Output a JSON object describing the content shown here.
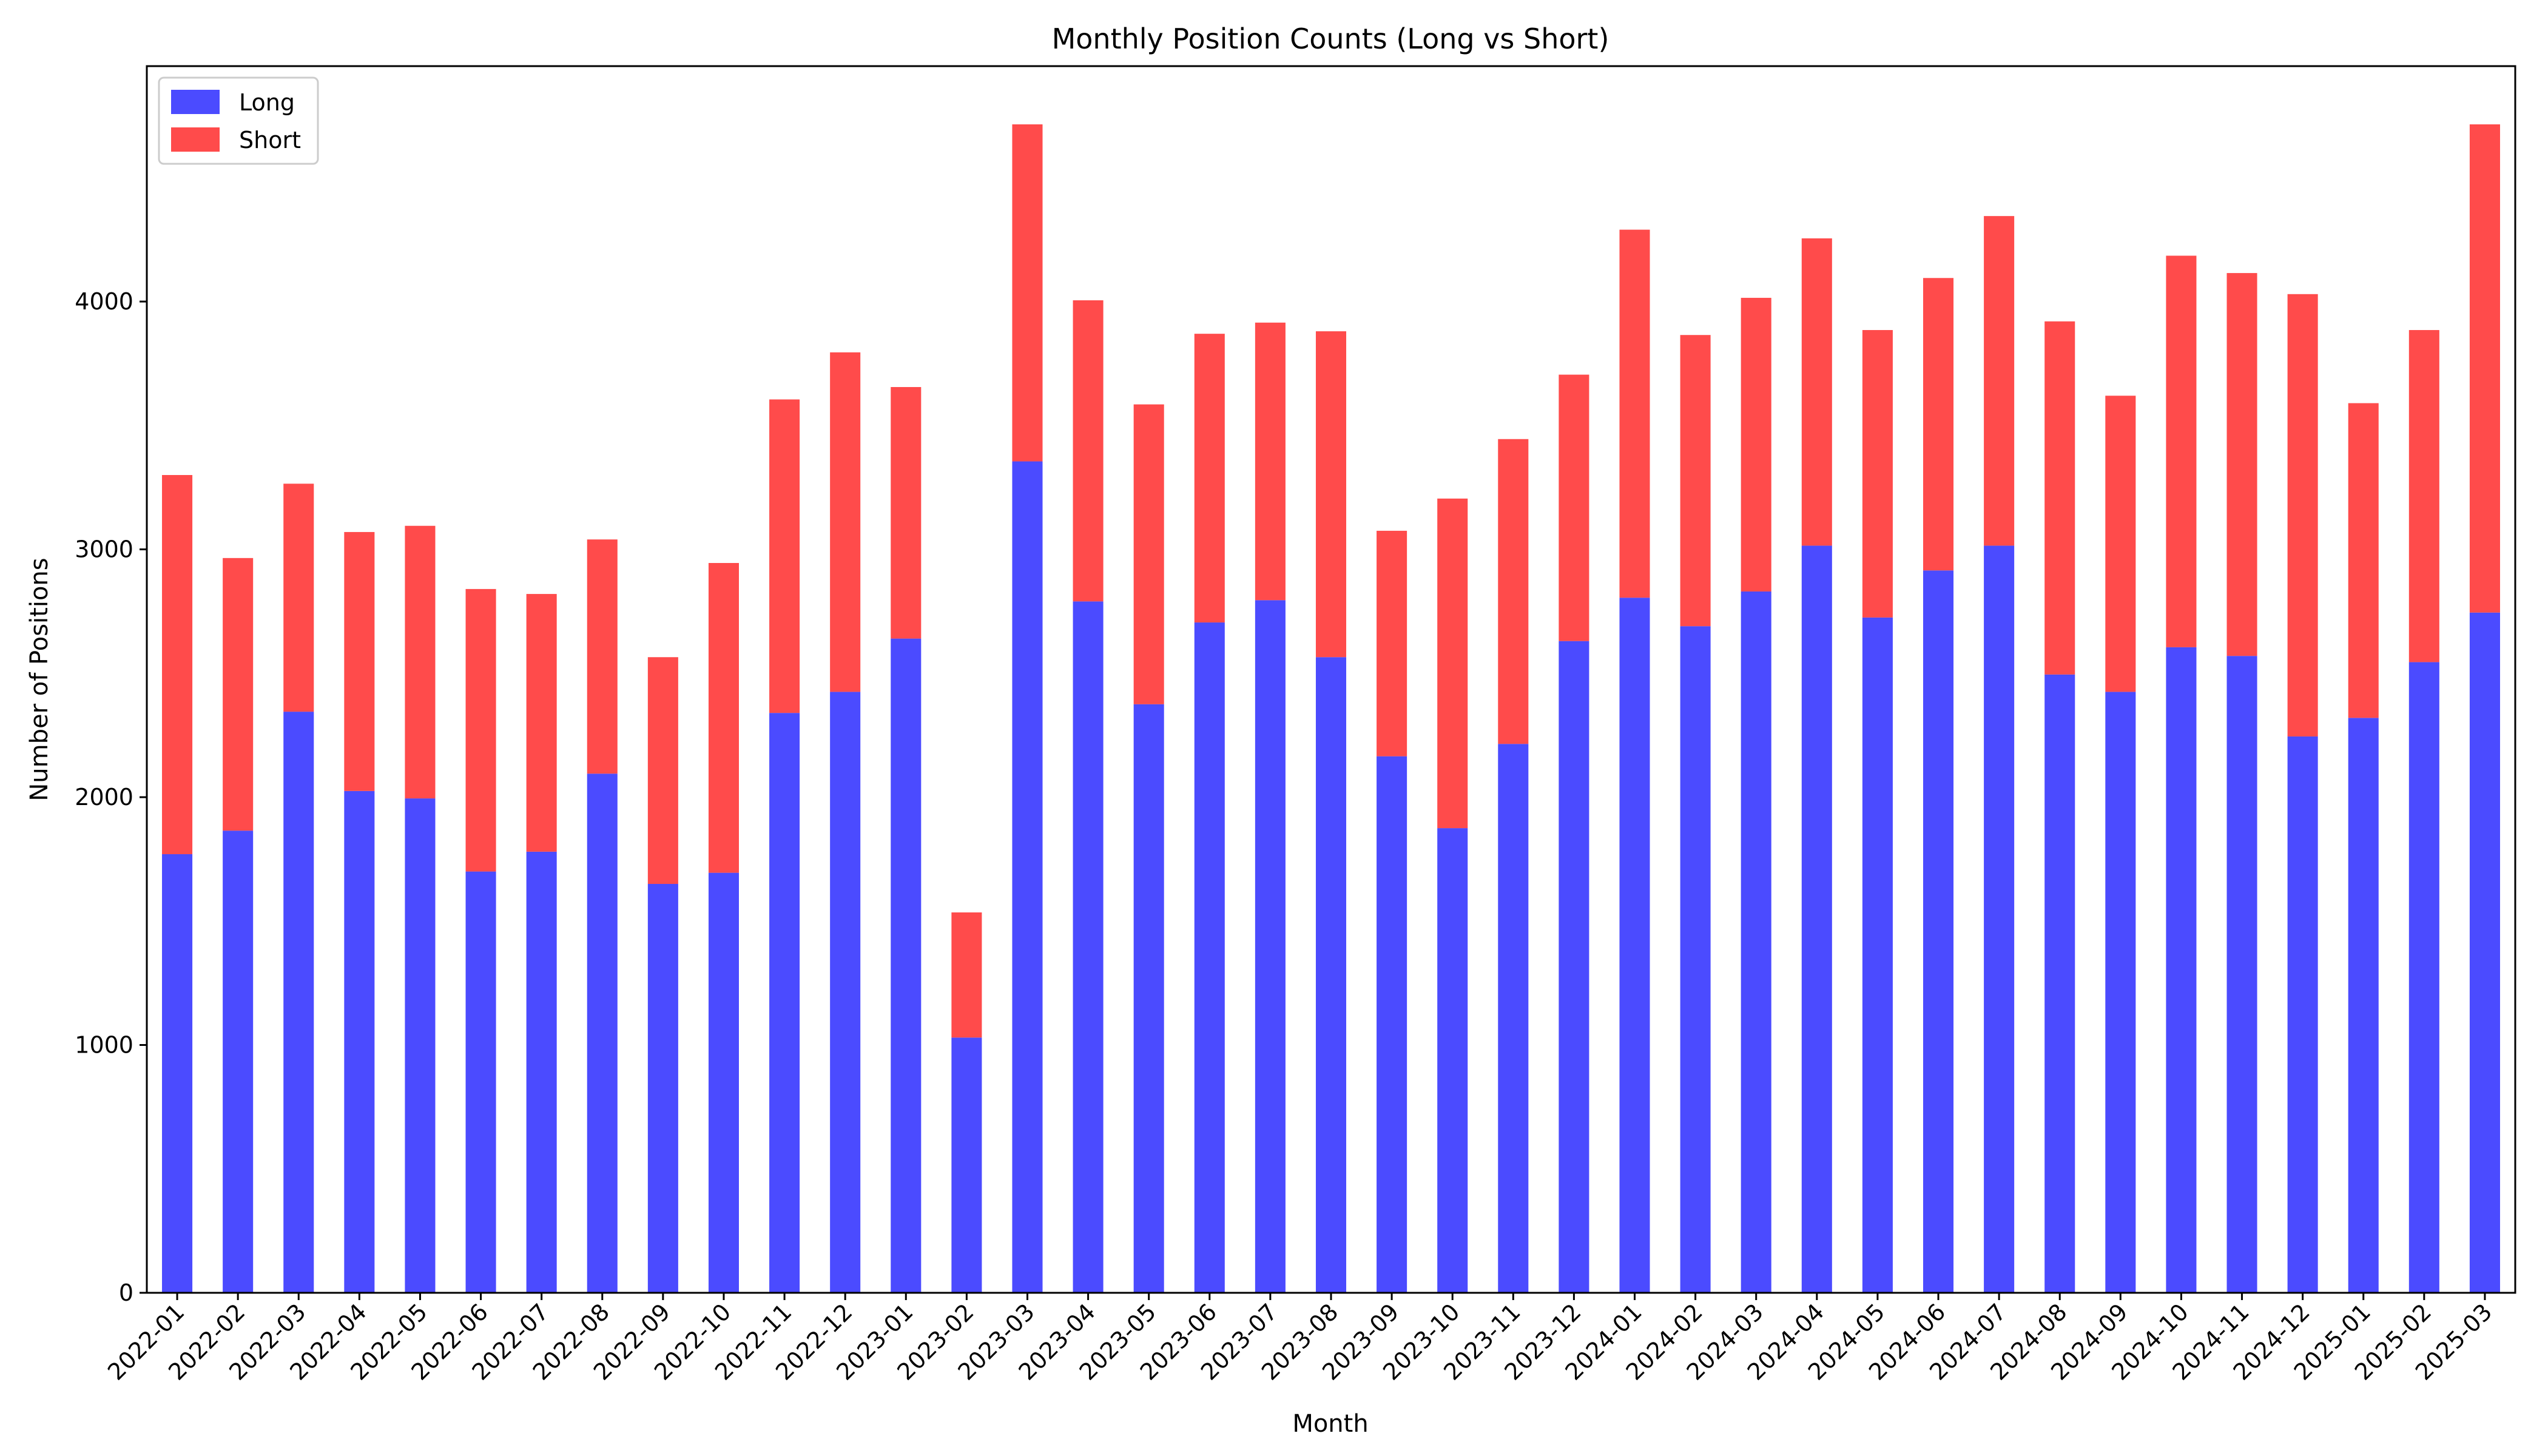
{
  "chart_data": {
    "type": "bar",
    "stacked": true,
    "title": "Monthly Position Counts (Long vs Short)",
    "xlabel": "Month",
    "ylabel": "Number of Positions",
    "ylim": [
      0,
      4950
    ],
    "yticks": [
      0,
      1000,
      2000,
      3000,
      4000
    ],
    "grid": false,
    "legend_position": "top-left",
    "categories": [
      "2022-01",
      "2022-02",
      "2022-03",
      "2022-04",
      "2022-05",
      "2022-06",
      "2022-07",
      "2022-08",
      "2022-09",
      "2022-10",
      "2022-11",
      "2022-12",
      "2023-01",
      "2023-02",
      "2023-03",
      "2023-04",
      "2023-05",
      "2023-06",
      "2023-07",
      "2023-08",
      "2023-09",
      "2023-10",
      "2023-11",
      "2023-12",
      "2024-01",
      "2024-02",
      "2024-03",
      "2024-04",
      "2024-05",
      "2024-06",
      "2024-07",
      "2024-08",
      "2024-09",
      "2024-10",
      "2024-11",
      "2024-12",
      "2025-01",
      "2025-02",
      "2025-03"
    ],
    "series": [
      {
        "name": "Long",
        "color": "#4b4bff",
        "values": [
          1770,
          1865,
          2345,
          2025,
          1995,
          1700,
          1780,
          2095,
          1650,
          1695,
          2340,
          2425,
          2640,
          1030,
          3355,
          2790,
          2375,
          2705,
          2795,
          2565,
          2165,
          1875,
          2215,
          2630,
          2805,
          2690,
          2830,
          3015,
          2725,
          2915,
          3015,
          2495,
          2425,
          2605,
          2570,
          2245,
          2320,
          2545,
          2745
        ]
      },
      {
        "name": "Short",
        "color": "#ff4b4b",
        "values": [
          1530,
          1100,
          920,
          1045,
          1100,
          1140,
          1040,
          945,
          915,
          1250,
          1265,
          1370,
          1015,
          505,
          1360,
          1215,
          1210,
          1165,
          1120,
          1315,
          910,
          1330,
          1230,
          1075,
          1485,
          1175,
          1185,
          1240,
          1160,
          1180,
          1330,
          1425,
          1195,
          1580,
          1545,
          1785,
          1270,
          1340,
          1970
        ]
      }
    ]
  }
}
